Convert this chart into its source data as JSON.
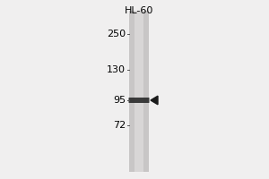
{
  "background_color": "#f0efef",
  "gel_bg_color": "#c8c6c6",
  "gel_center_color": "#d8d6d6",
  "image_bg": "#f0efef",
  "lane_label": "HL-60",
  "lane_label_fontsize": 8,
  "mw_markers": [
    250,
    130,
    95,
    72
  ],
  "mw_fontsize": 8,
  "band_color": "#2a2a2a",
  "arrow_color": "#1a1a1a",
  "tick_color": "#555555"
}
